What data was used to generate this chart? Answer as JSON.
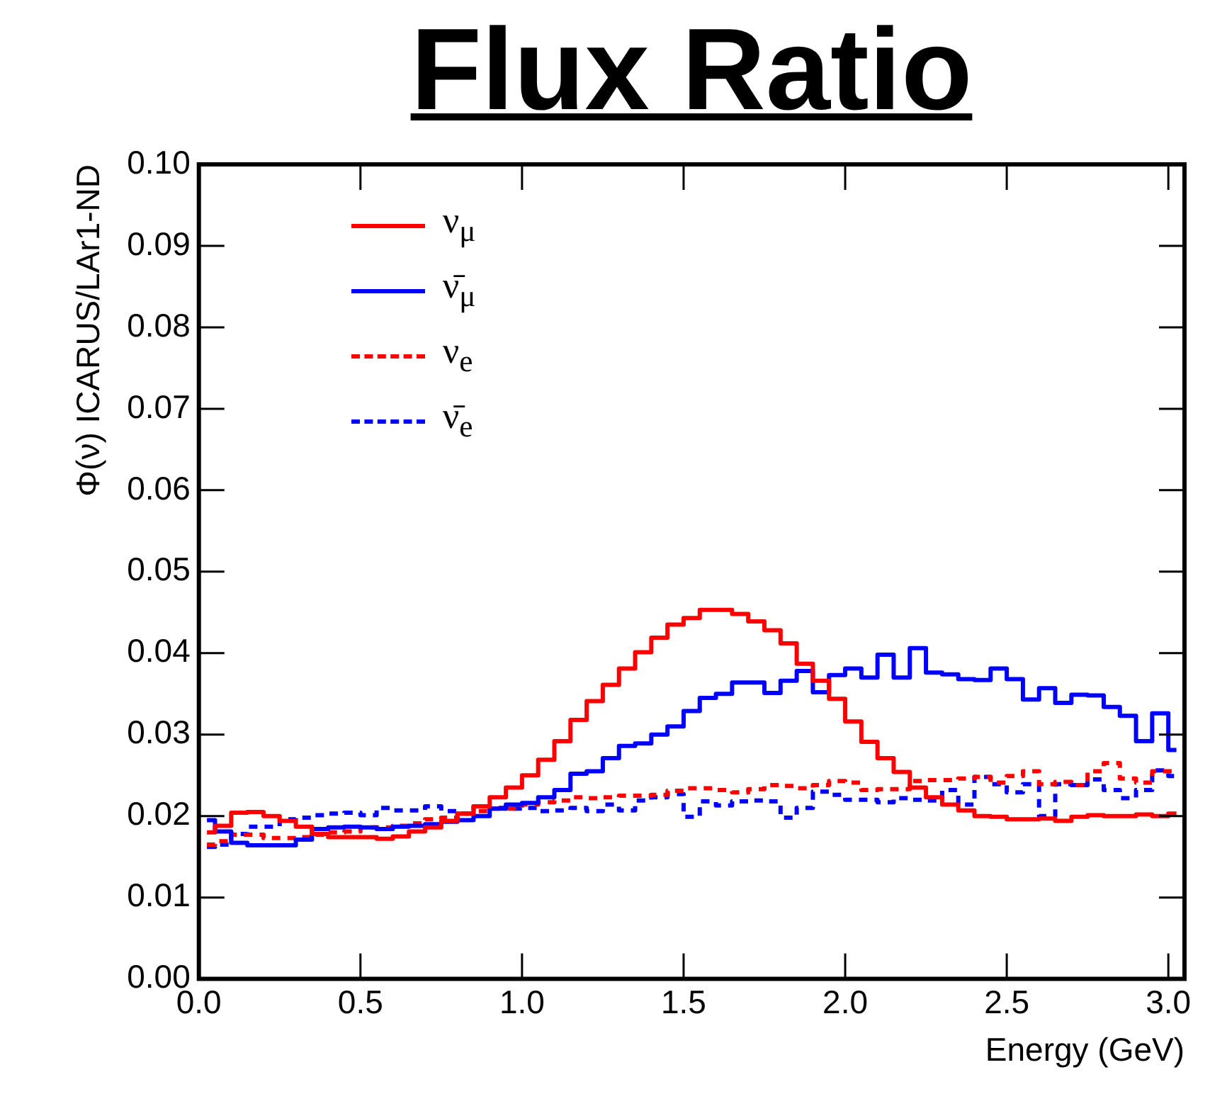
{
  "chart_data": {
    "type": "step",
    "title": "Flux Ratio",
    "xlabel": "Energy (GeV)",
    "ylabel": "Φ(ν) ICARUS/LAr1-ND",
    "x": [
      0.025,
      0.075,
      0.125,
      0.175,
      0.225,
      0.275,
      0.325,
      0.375,
      0.425,
      0.475,
      0.525,
      0.575,
      0.625,
      0.675,
      0.725,
      0.775,
      0.825,
      0.875,
      0.925,
      0.975,
      1.025,
      1.075,
      1.125,
      1.175,
      1.225,
      1.275,
      1.325,
      1.375,
      1.425,
      1.475,
      1.525,
      1.575,
      1.625,
      1.675,
      1.725,
      1.775,
      1.825,
      1.875,
      1.925,
      1.975,
      2.025,
      2.075,
      2.125,
      2.175,
      2.225,
      2.275,
      2.325,
      2.375,
      2.425,
      2.475,
      2.525,
      2.575,
      2.625,
      2.675,
      2.725,
      2.775,
      2.825,
      2.875,
      2.925,
      2.975,
      3.025
    ],
    "series": [
      {
        "name": "ν$_{μ}$",
        "color": "#ff0000",
        "line_style": "solid",
        "values": [
          0.018,
          0.0188,
          0.0204,
          0.0205,
          0.02,
          0.0194,
          0.0187,
          0.0178,
          0.0174,
          0.0174,
          0.0174,
          0.0172,
          0.0175,
          0.0181,
          0.0186,
          0.0194,
          0.0203,
          0.0212,
          0.0223,
          0.0235,
          0.025,
          0.0269,
          0.0292,
          0.0318,
          0.0341,
          0.0361,
          0.0381,
          0.0401,
          0.0419,
          0.0435,
          0.0443,
          0.0453,
          0.0453,
          0.0448,
          0.0439,
          0.0428,
          0.0412,
          0.0387,
          0.0366,
          0.0344,
          0.0316,
          0.0291,
          0.0271,
          0.0254,
          0.0235,
          0.0223,
          0.0214,
          0.0207,
          0.02,
          0.0199,
          0.0196,
          0.0196,
          0.0197,
          0.0194,
          0.0199,
          0.0201,
          0.02,
          0.02,
          0.0202,
          0.02,
          0.0203
        ]
      },
      {
        "name": "ν̄$_{μ}$",
        "color": "#0000ff",
        "line_style": "solid",
        "values": [
          0.0195,
          0.0181,
          0.0167,
          0.0164,
          0.0164,
          0.0164,
          0.0171,
          0.0184,
          0.0186,
          0.0187,
          0.0186,
          0.0184,
          0.0187,
          0.0188,
          0.019,
          0.0193,
          0.0195,
          0.02,
          0.0209,
          0.0214,
          0.0216,
          0.0223,
          0.0232,
          0.0252,
          0.0255,
          0.0271,
          0.0286,
          0.0289,
          0.03,
          0.031,
          0.0329,
          0.0345,
          0.035,
          0.0364,
          0.0364,
          0.0351,
          0.0366,
          0.0378,
          0.0352,
          0.0373,
          0.0381,
          0.037,
          0.0398,
          0.037,
          0.0406,
          0.0376,
          0.0374,
          0.0368,
          0.0367,
          0.0381,
          0.0368,
          0.0343,
          0.0357,
          0.0339,
          0.0349,
          0.0348,
          0.0334,
          0.0323,
          0.0292,
          0.0326,
          0.0281
        ]
      },
      {
        "name": "ν$_{e}$",
        "color": "#ff0000",
        "line_style": "dashed",
        "values": [
          0.0165,
          0.0169,
          0.0177,
          0.0177,
          0.0173,
          0.0173,
          0.0174,
          0.0177,
          0.018,
          0.0181,
          0.0186,
          0.0186,
          0.0188,
          0.0191,
          0.0196,
          0.0198,
          0.0203,
          0.0206,
          0.0209,
          0.0209,
          0.0214,
          0.0217,
          0.0219,
          0.0223,
          0.0222,
          0.0223,
          0.0225,
          0.0225,
          0.0226,
          0.0231,
          0.0234,
          0.0234,
          0.0232,
          0.0229,
          0.0233,
          0.0238,
          0.0237,
          0.0234,
          0.0238,
          0.0243,
          0.0241,
          0.0232,
          0.0233,
          0.0233,
          0.0243,
          0.0244,
          0.0244,
          0.0246,
          0.0248,
          0.0241,
          0.0249,
          0.0255,
          0.0239,
          0.0242,
          0.0238,
          0.0255,
          0.0265,
          0.0246,
          0.0241,
          0.0255,
          0.0255
        ]
      },
      {
        "name": "ν̄$_{e}$",
        "color": "#0000ff",
        "line_style": "dashed",
        "values": [
          0.0162,
          0.0165,
          0.0178,
          0.0187,
          0.0187,
          0.0196,
          0.0198,
          0.0201,
          0.0203,
          0.0204,
          0.0201,
          0.021,
          0.0207,
          0.0207,
          0.0212,
          0.0206,
          0.0203,
          0.0212,
          0.021,
          0.0209,
          0.021,
          0.0206,
          0.0207,
          0.021,
          0.0206,
          0.0214,
          0.0207,
          0.0219,
          0.0223,
          0.0227,
          0.0199,
          0.0218,
          0.0213,
          0.0218,
          0.0219,
          0.0218,
          0.0198,
          0.021,
          0.023,
          0.0226,
          0.022,
          0.022,
          0.0217,
          0.0222,
          0.022,
          0.0219,
          0.0232,
          0.0214,
          0.0248,
          0.0239,
          0.0229,
          0.0239,
          0.02,
          0.0239,
          0.0238,
          0.0245,
          0.0232,
          0.0222,
          0.0232,
          0.0256,
          0.0249
        ]
      }
    ],
    "xlim": [
      0,
      3.05
    ],
    "xticks": [
      {
        "value": 0,
        "label": "0.0"
      },
      {
        "value": 0.5,
        "label": "0.5"
      },
      {
        "value": 1,
        "label": "1.0"
      },
      {
        "value": 1.5,
        "label": "1.5"
      },
      {
        "value": 2,
        "label": "2.0"
      },
      {
        "value": 2.5,
        "label": "2.5"
      },
      {
        "value": 3,
        "label": "3.0"
      }
    ],
    "ylim": [
      0,
      0.1
    ],
    "yticks": [
      {
        "value": 0,
        "label": "0.00"
      },
      {
        "value": 0.01,
        "label": "0.01"
      },
      {
        "value": 0.02,
        "label": "0.02"
      },
      {
        "value": 0.03,
        "label": "0.03"
      },
      {
        "value": 0.04,
        "label": "0.04"
      },
      {
        "value": 0.05,
        "label": "0.05"
      },
      {
        "value": 0.06,
        "label": "0.06"
      },
      {
        "value": 0.07,
        "label": "0.07"
      },
      {
        "value": 0.08,
        "label": "0.08"
      },
      {
        "value": 0.09,
        "label": "0.09"
      },
      {
        "value": 0.1,
        "label": "0.10"
      }
    ],
    "grid": false,
    "legend": "top left"
  }
}
